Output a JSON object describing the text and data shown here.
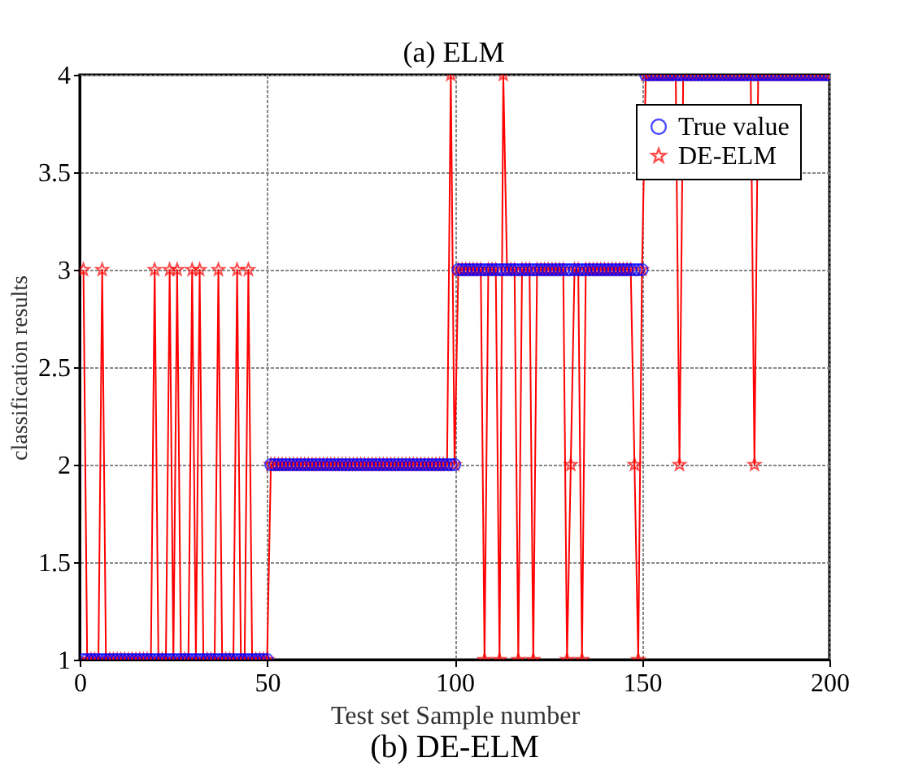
{
  "chart_data": {
    "type": "line",
    "title": "(b) DE-ELM",
    "xlabel": "Test set Sample number",
    "ylabel": "classification results",
    "annotations": [
      "(a) ELM"
    ],
    "x": [
      1,
      2,
      3,
      4,
      5,
      6,
      7,
      8,
      9,
      10,
      11,
      12,
      13,
      14,
      15,
      16,
      17,
      18,
      19,
      20,
      21,
      22,
      23,
      24,
      25,
      26,
      27,
      28,
      29,
      30,
      31,
      32,
      33,
      34,
      35,
      36,
      37,
      38,
      39,
      40,
      41,
      42,
      43,
      44,
      45,
      46,
      47,
      48,
      49,
      50,
      51,
      52,
      53,
      54,
      55,
      56,
      57,
      58,
      59,
      60,
      61,
      62,
      63,
      64,
      65,
      66,
      67,
      68,
      69,
      70,
      71,
      72,
      73,
      74,
      75,
      76,
      77,
      78,
      79,
      80,
      81,
      82,
      83,
      84,
      85,
      86,
      87,
      88,
      89,
      90,
      91,
      92,
      93,
      94,
      95,
      96,
      97,
      98,
      99,
      100,
      101,
      102,
      103,
      104,
      105,
      106,
      107,
      108,
      109,
      110,
      111,
      112,
      113,
      114,
      115,
      116,
      117,
      118,
      119,
      120,
      121,
      122,
      123,
      124,
      125,
      126,
      127,
      128,
      129,
      130,
      131,
      132,
      133,
      134,
      135,
      136,
      137,
      138,
      139,
      140,
      141,
      142,
      143,
      144,
      145,
      146,
      147,
      148,
      149,
      150,
      151,
      152,
      153,
      154,
      155,
      156,
      157,
      158,
      159,
      160,
      161,
      162,
      163,
      164,
      165,
      166,
      167,
      168,
      169,
      170,
      171,
      172,
      173,
      174,
      175,
      176,
      177,
      178,
      179,
      180,
      181,
      182,
      183,
      184,
      185,
      186,
      187,
      188,
      189,
      190,
      191,
      192,
      193,
      194,
      195,
      196,
      197,
      198,
      199,
      200
    ],
    "series": [
      {
        "name": "True value",
        "type": "scatter",
        "marker": "circle",
        "color": "#0000ff",
        "values": [
          1,
          1,
          1,
          1,
          1,
          1,
          1,
          1,
          1,
          1,
          1,
          1,
          1,
          1,
          1,
          1,
          1,
          1,
          1,
          1,
          1,
          1,
          1,
          1,
          1,
          1,
          1,
          1,
          1,
          1,
          1,
          1,
          1,
          1,
          1,
          1,
          1,
          1,
          1,
          1,
          1,
          1,
          1,
          1,
          1,
          1,
          1,
          1,
          1,
          1,
          2,
          2,
          2,
          2,
          2,
          2,
          2,
          2,
          2,
          2,
          2,
          2,
          2,
          2,
          2,
          2,
          2,
          2,
          2,
          2,
          2,
          2,
          2,
          2,
          2,
          2,
          2,
          2,
          2,
          2,
          2,
          2,
          2,
          2,
          2,
          2,
          2,
          2,
          2,
          2,
          2,
          2,
          2,
          2,
          2,
          2,
          2,
          2,
          2,
          2,
          3,
          3,
          3,
          3,
          3,
          3,
          3,
          3,
          3,
          3,
          3,
          3,
          3,
          3,
          3,
          3,
          3,
          3,
          3,
          3,
          3,
          3,
          3,
          3,
          3,
          3,
          3,
          3,
          3,
          3,
          3,
          3,
          3,
          3,
          3,
          3,
          3,
          3,
          3,
          3,
          3,
          3,
          3,
          3,
          3,
          3,
          3,
          3,
          3,
          3,
          4,
          4,
          4,
          4,
          4,
          4,
          4,
          4,
          4,
          4,
          4,
          4,
          4,
          4,
          4,
          4,
          4,
          4,
          4,
          4,
          4,
          4,
          4,
          4,
          4,
          4,
          4,
          4,
          4,
          4,
          4,
          4,
          4,
          4,
          4,
          4,
          4,
          4,
          4,
          4,
          4,
          4,
          4,
          4,
          4,
          4,
          4,
          4,
          4,
          4
        ]
      },
      {
        "name": "DE-ELM",
        "marker": "star",
        "color": "#ff0000",
        "values": [
          3,
          1,
          1,
          1,
          1,
          3,
          1,
          1,
          1,
          1,
          1,
          1,
          1,
          1,
          1,
          1,
          1,
          1,
          1,
          3,
          1,
          1,
          1,
          3,
          1,
          3,
          1,
          1,
          1,
          3,
          1,
          3,
          1,
          1,
          1,
          1,
          3,
          1,
          1,
          1,
          1,
          3,
          1,
          1,
          3,
          1,
          1,
          1,
          1,
          1,
          2,
          2,
          2,
          2,
          2,
          2,
          2,
          2,
          2,
          2,
          2,
          2,
          2,
          2,
          2,
          2,
          2,
          2,
          2,
          2,
          2,
          2,
          2,
          2,
          2,
          2,
          2,
          2,
          2,
          2,
          2,
          2,
          2,
          2,
          2,
          2,
          2,
          2,
          2,
          2,
          2,
          2,
          2,
          2,
          2,
          2,
          2,
          2,
          4,
          2,
          3,
          3,
          3,
          3,
          3,
          3,
          3,
          1,
          3,
          3,
          3,
          1,
          4,
          3,
          3,
          3,
          1,
          3,
          3,
          3,
          1,
          3,
          3,
          3,
          3,
          3,
          3,
          3,
          3,
          1,
          2,
          3,
          3,
          1,
          3,
          3,
          3,
          3,
          3,
          3,
          3,
          3,
          3,
          3,
          3,
          3,
          3,
          2,
          1,
          3,
          4,
          4,
          4,
          4,
          4,
          4,
          4,
          4,
          4,
          2,
          4,
          4,
          4,
          4,
          4,
          4,
          4,
          4,
          4,
          4,
          4,
          4,
          4,
          4,
          4,
          4,
          4,
          4,
          4,
          2,
          4,
          4,
          4,
          4,
          4,
          4,
          4,
          4,
          4,
          4,
          4,
          4,
          4,
          4,
          4,
          4,
          4,
          4,
          4,
          4
        ]
      }
    ],
    "xlim": [
      0,
      200
    ],
    "xticks": [
      0,
      50,
      100,
      150,
      200
    ],
    "ylim": [
      1,
      4
    ],
    "yticks": [
      1,
      1.5,
      2,
      2.5,
      3,
      3.5,
      4
    ],
    "grid": true,
    "legend": "top right"
  }
}
